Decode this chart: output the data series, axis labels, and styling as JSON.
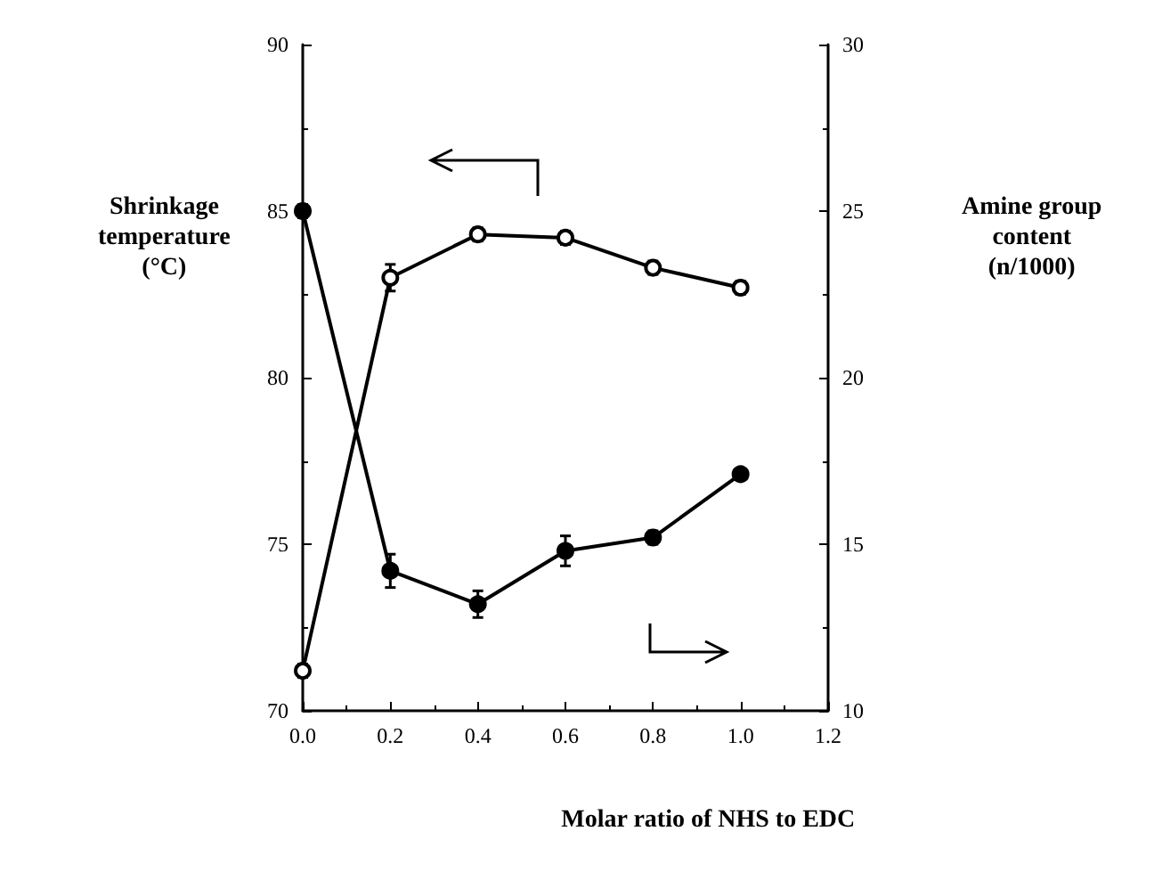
{
  "chart_data": {
    "type": "line",
    "xlabel": "Molar ratio of NHS to EDC",
    "ylabel": "Shrinkage\ntemperature\n(°C)",
    "y2label": "Amine group\ncontent\n(n/1000)",
    "x": [
      0.0,
      0.2,
      0.4,
      0.6,
      0.8,
      1.0
    ],
    "series": [
      {
        "color": "#000000",
        "values": [
          71.2,
          83.0,
          84.3,
          84.2,
          83.3,
          82.7
        ],
        "errors": [
          0.2,
          0.4,
          0.2,
          0.2,
          0.2,
          0.2
        ]
      },
      {
        "color": "#000000",
        "axis": "y2",
        "values": [
          25.0,
          14.2,
          13.2,
          14.8,
          15.2,
          17.1
        ],
        "errors": [
          0.2,
          0.5,
          0.4,
          0.45,
          0.2,
          0.15
        ]
      }
    ],
    "xlim": [
      0.0,
      1.2
    ],
    "xticks": [
      {
        "value": 0,
        "label": "0.0"
      },
      0.2,
      {
        "value": 0.4,
        "label": "0.4"
      },
      0.6,
      0.8,
      {
        "value": 1,
        "label": "1.0"
      },
      1.2
    ],
    "ylim": [
      70,
      90
    ],
    "yticks": [
      70,
      75,
      80,
      85,
      90
    ],
    "y2lim": [
      10,
      30
    ],
    "y2ticks": [
      10,
      15,
      20,
      25,
      30
    ],
    "marker": "circle",
    "line_style": "solid",
    "grid": false
  }
}
